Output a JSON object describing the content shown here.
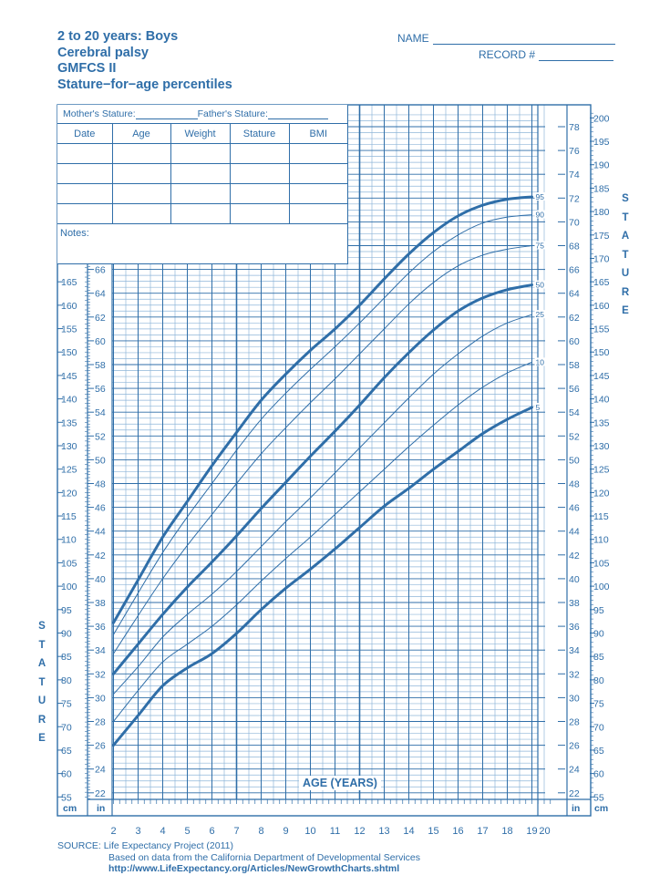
{
  "header": {
    "title_lines": [
      "2 to 20 years: Boys",
      "Cerebral palsy",
      "GMFCS II",
      "Stature−for−age percentiles"
    ],
    "name_label": "NAME",
    "record_label": "RECORD #"
  },
  "record_box": {
    "mothers_stature_label": "Mother's Stature:",
    "fathers_stature_label": "Father's Stature:",
    "columns": [
      "Date",
      "Age",
      "Weight",
      "Stature",
      "BMI"
    ],
    "empty_rows": 4,
    "notes_label": "Notes:"
  },
  "axes": {
    "left_vertical_label": "STATURE",
    "right_vertical_label": "STATURE",
    "x_title": "AGE (YEARS)",
    "cm_unit": "cm",
    "in_unit": "in"
  },
  "footer": {
    "source_label": "SOURCE:",
    "source_line1": "Life Expectancy Project (2011)",
    "source_line2": "Based on data from the California Department of Developmental Services",
    "source_line3": "http://www.LifeExpectancy.org/Articles/NewGrowthCharts.shtml"
  },
  "colors": {
    "ink": "#2f6ea8",
    "grid_major": "#2f6ea8",
    "grid_minor": "#8fb6d9"
  },
  "chart_data": {
    "type": "line",
    "title": "2 to 20 years: Boys — Cerebral palsy GMFCS II — Stature-for-age percentiles",
    "xlabel": "AGE (YEARS)",
    "ylabel": "STATURE",
    "x_ticks": [
      2,
      3,
      4,
      5,
      6,
      7,
      8,
      9,
      10,
      11,
      12,
      13,
      14,
      15,
      16,
      17,
      18,
      19,
      20
    ],
    "xlim": [
      2,
      20
    ],
    "y_units_primary": "in",
    "y_in_ticks_left": [
      22,
      24,
      26,
      28,
      30,
      32,
      34,
      36,
      38,
      40,
      42,
      44,
      46,
      48,
      50,
      52,
      54,
      56,
      58,
      60,
      62,
      64,
      66
    ],
    "y_in_ticks_right": [
      22,
      24,
      26,
      28,
      30,
      32,
      34,
      36,
      38,
      40,
      42,
      44,
      46,
      48,
      50,
      52,
      54,
      56,
      58,
      60,
      62,
      64,
      66,
      68,
      70,
      72,
      74,
      76,
      78
    ],
    "y_cm_ticks_left": [
      55,
      60,
      65,
      70,
      75,
      80,
      85,
      90,
      95,
      100,
      105,
      110,
      115,
      120,
      125,
      130,
      135,
      140,
      145,
      150,
      155,
      160,
      165
    ],
    "y_cm_ticks_right": [
      55,
      60,
      65,
      70,
      75,
      80,
      85,
      90,
      95,
      100,
      105,
      110,
      115,
      120,
      125,
      130,
      135,
      140,
      145,
      150,
      155,
      160,
      165,
      170,
      175,
      180,
      185,
      190,
      195,
      200
    ],
    "ylim_in": [
      21,
      79
    ],
    "grid": true,
    "x": [
      2,
      3,
      4,
      5,
      6,
      7,
      8,
      9,
      10,
      11,
      12,
      13,
      14,
      15,
      16,
      17,
      18,
      19
    ],
    "series": [
      {
        "name": "95",
        "bold": true,
        "values": [
          36.3,
          39.9,
          43.5,
          46.5,
          49.5,
          52.3,
          55.0,
          57.2,
          59.2,
          61.0,
          63.0,
          65.2,
          67.3,
          69.1,
          70.5,
          71.4,
          71.9,
          72.1
        ]
      },
      {
        "name": "90",
        "bold": false,
        "values": [
          35.3,
          38.8,
          42.2,
          45.2,
          48.0,
          50.8,
          53.4,
          55.6,
          57.6,
          59.5,
          61.5,
          63.6,
          65.7,
          67.5,
          68.9,
          69.9,
          70.4,
          70.6
        ]
      },
      {
        "name": "75",
        "bold": false,
        "values": [
          33.7,
          36.9,
          40.0,
          42.8,
          45.4,
          48.0,
          50.5,
          52.7,
          54.8,
          56.8,
          58.9,
          61.0,
          63.1,
          64.9,
          66.3,
          67.2,
          67.7,
          68.0
        ]
      },
      {
        "name": "50",
        "bold": true,
        "values": [
          32.0,
          34.5,
          37.0,
          39.3,
          41.4,
          43.6,
          45.9,
          48.1,
          50.3,
          52.4,
          54.6,
          56.9,
          59.0,
          60.9,
          62.5,
          63.6,
          64.3,
          64.7
        ]
      },
      {
        "name": "25",
        "bold": false,
        "values": [
          30.3,
          32.6,
          35.1,
          37.0,
          38.7,
          40.6,
          42.7,
          44.8,
          46.8,
          48.9,
          51.0,
          53.1,
          55.2,
          57.2,
          58.9,
          60.4,
          61.5,
          62.2
        ]
      },
      {
        "name": "10",
        "bold": false,
        "values": [
          28.0,
          30.6,
          33.0,
          34.5,
          36.0,
          37.8,
          39.8,
          41.7,
          43.5,
          45.4,
          47.3,
          49.2,
          51.1,
          52.9,
          54.6,
          56.1,
          57.3,
          58.2
        ]
      },
      {
        "name": "5",
        "bold": true,
        "values": [
          26.0,
          28.5,
          31.0,
          32.5,
          33.7,
          35.4,
          37.4,
          39.2,
          40.8,
          42.5,
          44.3,
          46.1,
          47.6,
          49.2,
          50.7,
          52.2,
          53.4,
          54.4
        ]
      }
    ],
    "legend": "percentile labels at right end of each curve (95, 90, 75, 50, 25, 10, 5)"
  }
}
